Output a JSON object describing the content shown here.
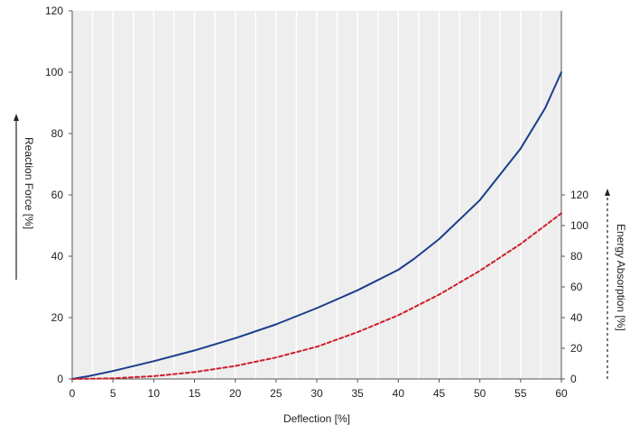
{
  "chart_data": {
    "type": "line",
    "xlabel": "Deflection [%]",
    "ylabel_left": "Reaction Force [%]",
    "ylabel_right": "Energy Absorption [%]",
    "xlim": [
      0,
      60
    ],
    "ylim_left": [
      0,
      120
    ],
    "ylim_right": [
      0,
      120
    ],
    "x_ticks": [
      0,
      5,
      10,
      15,
      20,
      25,
      30,
      35,
      40,
      45,
      50,
      55,
      60
    ],
    "y_ticks_left": [
      0,
      20,
      40,
      60,
      80,
      100,
      120
    ],
    "y_ticks_right": [
      0,
      20,
      40,
      60,
      80,
      100,
      120
    ],
    "grid": "vertical",
    "plot_background": "#eeeeee",
    "series": [
      {
        "axis": "left",
        "color": "#1a3e8c",
        "style": "solid",
        "x": [
          0,
          2,
          5,
          10,
          15,
          20,
          25,
          30,
          35,
          40,
          42,
          45,
          50,
          55,
          58,
          60
        ],
        "y": [
          0,
          0.9,
          2.6,
          5.8,
          9.3,
          13.3,
          17.8,
          23.1,
          28.9,
          35.6,
          39.3,
          45.6,
          58.3,
          75.1,
          88.2,
          100
        ]
      },
      {
        "axis": "right",
        "color": "#cc1f2b",
        "style": "dashed",
        "x": [
          0,
          5,
          10,
          15,
          20,
          25,
          30,
          35,
          40,
          45,
          50,
          55,
          58,
          60
        ],
        "y": [
          0,
          0.4,
          1.8,
          4.5,
          8.5,
          14,
          21,
          30.5,
          41.5,
          55,
          70.5,
          88,
          100,
          108
        ]
      }
    ]
  }
}
